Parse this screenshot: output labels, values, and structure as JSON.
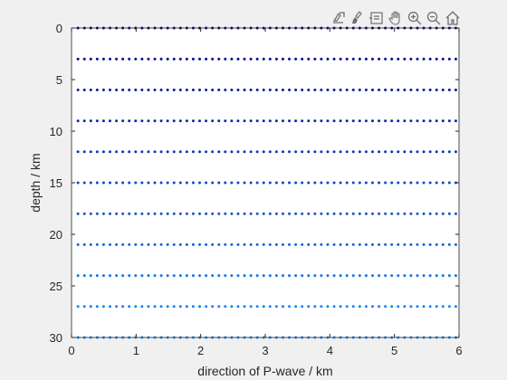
{
  "toolbar": {
    "icons": [
      "export-icon",
      "brush-icon",
      "datatip-icon",
      "pan-icon",
      "zoom-in-icon",
      "zoom-out-icon",
      "home-icon"
    ]
  },
  "colors": {
    "figure_bg": "#f0f0f0",
    "axes_bg": "#ffffff",
    "axis_color": "#262626",
    "icon_color": "#6e6e6e",
    "marker_start": "#000080",
    "marker_end": "#1e90ff"
  },
  "chart_data": {
    "type": "scatter",
    "title": "",
    "xlabel": "direction of P-wave / km",
    "ylabel": "depth / km",
    "xlim": [
      0,
      6
    ],
    "ylim": [
      0,
      30
    ],
    "y_reversed": true,
    "xticks": [
      "0",
      "1",
      "2",
      "3",
      "4",
      "5",
      "6"
    ],
    "yticks": [
      "0",
      "5",
      "10",
      "15",
      "20",
      "25",
      "30"
    ],
    "grid": false,
    "legend": "none",
    "series": [
      {
        "y": 0,
        "x_start": 0.1,
        "x_end": 5.95,
        "count": 60
      },
      {
        "y": 3,
        "x_start": 0.1,
        "x_end": 5.95,
        "count": 60
      },
      {
        "y": 6,
        "x_start": 0.1,
        "x_end": 5.95,
        "count": 60
      },
      {
        "y": 9,
        "x_start": 0.1,
        "x_end": 5.95,
        "count": 60
      },
      {
        "y": 12,
        "x_start": 0.1,
        "x_end": 5.95,
        "count": 60
      },
      {
        "y": 15,
        "x_start": 0.1,
        "x_end": 5.95,
        "count": 60
      },
      {
        "y": 18,
        "x_start": 0.1,
        "x_end": 5.95,
        "count": 60
      },
      {
        "y": 21,
        "x_start": 0.1,
        "x_end": 5.95,
        "count": 60
      },
      {
        "y": 24,
        "x_start": 0.1,
        "x_end": 5.95,
        "count": 60
      },
      {
        "y": 27,
        "x_start": 0.1,
        "x_end": 5.95,
        "count": 60
      },
      {
        "y": 30,
        "x_start": 0.1,
        "x_end": 5.95,
        "count": 60
      }
    ]
  }
}
